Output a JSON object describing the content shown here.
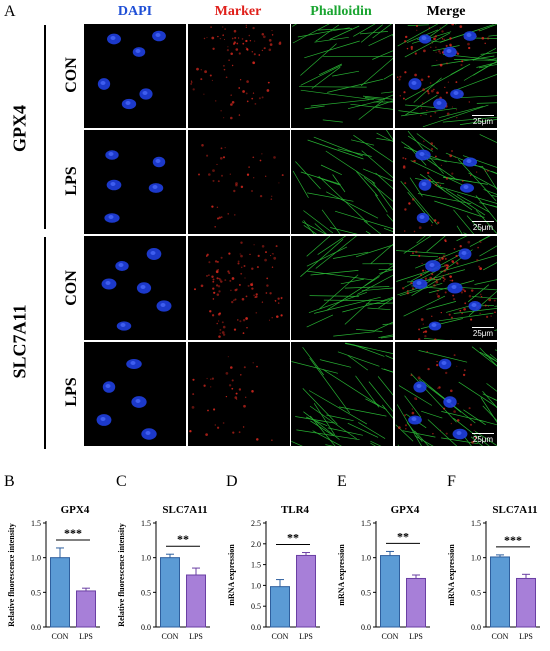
{
  "panel_letters": [
    "A",
    "B",
    "C",
    "D",
    "E",
    "F"
  ],
  "columns": [
    {
      "label": "DAPI",
      "color": "#1f4fd6"
    },
    {
      "label": "Marker",
      "color": "#e0201b"
    },
    {
      "label": "Phalloidin",
      "color": "#1aa531"
    },
    {
      "label": "Merge",
      "color": "#000000"
    }
  ],
  "groups": [
    {
      "name": "GPX4",
      "rows": [
        "CON",
        "LPS"
      ]
    },
    {
      "name": "SLC7A11",
      "rows": [
        "CON",
        "LPS"
      ]
    }
  ],
  "scale_bar": "25μm",
  "colors": {
    "con_bar": "#5b9bd5",
    "con_edge": "#2e5f9e",
    "lps_bar": "#a77fd8",
    "lps_edge": "#6a3fa3"
  },
  "chart_data": [
    {
      "type": "bar",
      "title": "GPX4",
      "ylabel": "Relative fluorescence intensity",
      "categories": [
        "CON",
        "LPS"
      ],
      "values": [
        1.0,
        0.52
      ],
      "errors": [
        0.14,
        0.04
      ],
      "ylim": [
        0.0,
        1.5
      ],
      "yticks": [
        "0.0",
        "0.5",
        "1.0",
        "1.5"
      ],
      "significance": "***"
    },
    {
      "type": "bar",
      "title": "SLC7A11",
      "ylabel": "Relative fluorescence intensity",
      "categories": [
        "CON",
        "LPS"
      ],
      "values": [
        1.0,
        0.75
      ],
      "errors": [
        0.05,
        0.1
      ],
      "ylim": [
        0.0,
        1.5
      ],
      "yticks": [
        "0.0",
        "0.5",
        "1.0",
        "1.5"
      ],
      "significance": "**"
    },
    {
      "type": "bar",
      "title": "TLR4",
      "ylabel": "mRNA expression",
      "categories": [
        "CON",
        "LPS"
      ],
      "values": [
        0.97,
        1.72
      ],
      "errors": [
        0.17,
        0.07
      ],
      "ylim": [
        0.0,
        2.5
      ],
      "yticks": [
        "0.0",
        "0.5",
        "1.0",
        "1.5",
        "2.0",
        "2.5"
      ],
      "significance": "**"
    },
    {
      "type": "bar",
      "title": "GPX4",
      "ylabel": "mRNA expression",
      "categories": [
        "CON",
        "LPS"
      ],
      "values": [
        1.03,
        0.7
      ],
      "errors": [
        0.06,
        0.05
      ],
      "ylim": [
        0.0,
        1.5
      ],
      "yticks": [
        "0.0",
        "0.5",
        "1.0",
        "1.5"
      ],
      "significance": "**"
    },
    {
      "type": "bar",
      "title": "SLC7A11",
      "ylabel": "mRNA expression",
      "categories": [
        "CON",
        "LPS"
      ],
      "values": [
        1.01,
        0.7
      ],
      "errors": [
        0.03,
        0.06
      ],
      "ylim": [
        0.0,
        1.5
      ],
      "yticks": [
        "0.0",
        "0.5",
        "1.0",
        "1.5"
      ],
      "significance": "***"
    }
  ]
}
